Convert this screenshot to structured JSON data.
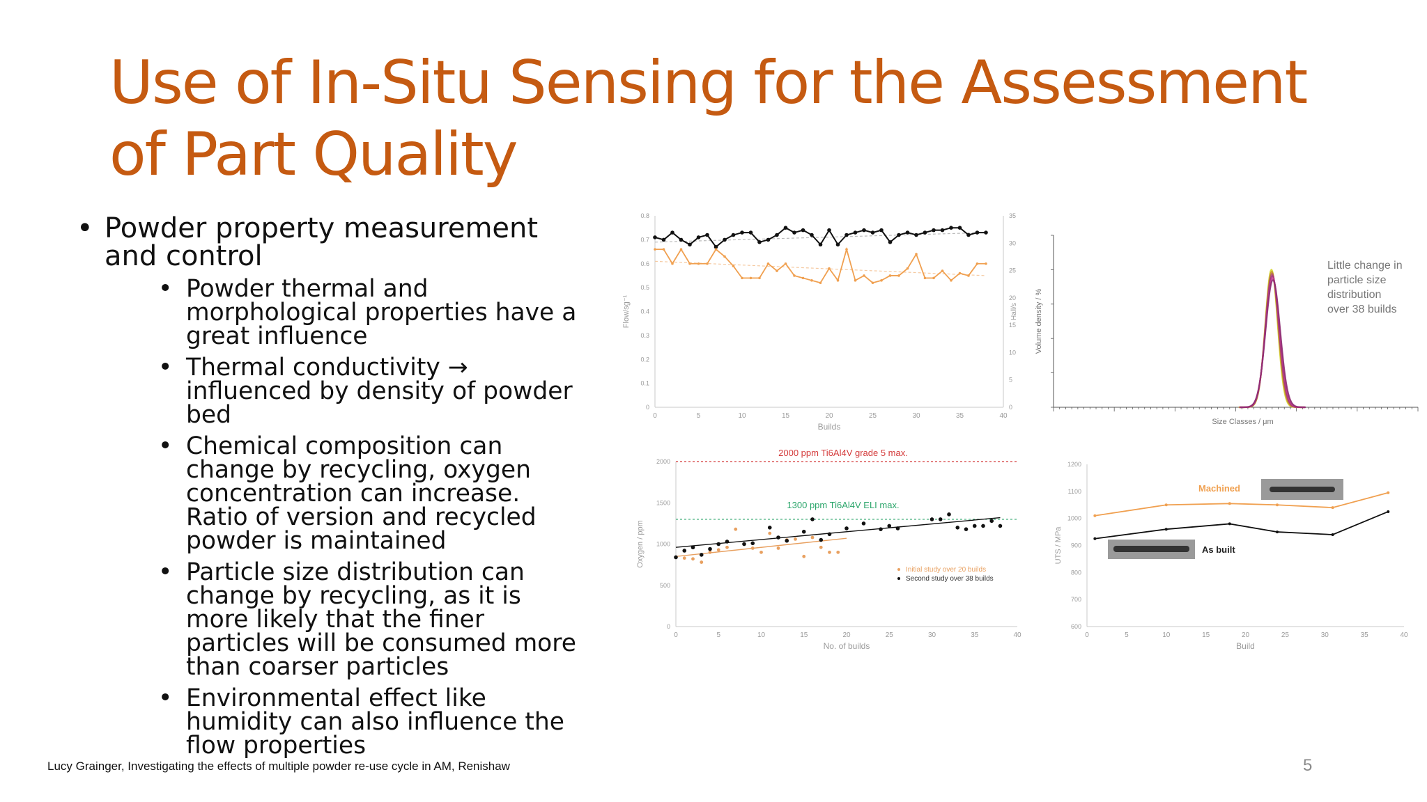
{
  "slide": {
    "title": "Use of In-Situ Sensing for the Assessment of Part Quality",
    "bullet": "Powder property measurement and control",
    "sub_bullets": [
      "Powder thermal and morphological properties have a great influence",
      "Thermal conductivity → influenced by density of powder bed",
      "Chemical composition can change by recycling, oxygen concentration can increase. Ratio of version and recycled powder is maintained",
      "Particle size distribution can change by recycling, as it is more likely that the finer particles will be consumed more than coarser particles",
      "Environmental effect like humidity can also influence the flow properties"
    ],
    "footer": "Lucy Grainger, Investigating the effects of multiple powder re-use cycle in AM, Renishaw",
    "page_number": "5"
  },
  "chart_data": [
    {
      "type": "line",
      "xlabel": "Builds",
      "ylabel": "Flow/sg⁻¹",
      "y2label": "Hall/s",
      "xlim": [
        0,
        40
      ],
      "ylim": [
        0,
        0.8
      ],
      "y2lim": [
        0,
        35
      ],
      "x_ticks": [
        0,
        5,
        10,
        15,
        20,
        25,
        30,
        35,
        40
      ],
      "y_ticks": [
        0,
        0.1,
        0.2,
        0.3,
        0.4,
        0.5,
        0.6,
        0.7,
        0.8
      ],
      "y2_ticks": [
        0,
        5,
        10,
        15,
        20,
        25,
        30,
        35
      ],
      "series": [
        {
          "color": "#111111",
          "x": [
            0,
            1,
            2,
            3,
            4,
            5,
            6,
            7,
            8,
            9,
            10,
            11,
            12,
            13,
            14,
            15,
            16,
            17,
            18,
            19,
            20,
            21,
            22,
            23,
            24,
            25,
            26,
            27,
            28,
            29,
            30,
            31,
            32,
            33,
            34,
            35,
            36,
            37,
            38
          ],
          "y": [
            0.71,
            0.7,
            0.73,
            0.7,
            0.68,
            0.71,
            0.72,
            0.67,
            0.7,
            0.72,
            0.73,
            0.73,
            0.69,
            0.7,
            0.72,
            0.75,
            0.73,
            0.74,
            0.72,
            0.68,
            0.74,
            0.68,
            0.72,
            0.73,
            0.74,
            0.73,
            0.74,
            0.69,
            0.72,
            0.73,
            0.72,
            0.73,
            0.74,
            0.74,
            0.75,
            0.75,
            0.72,
            0.73,
            0.73
          ]
        },
        {
          "color": "#f0a050",
          "x": [
            0,
            1,
            2,
            3,
            4,
            5,
            6,
            7,
            8,
            9,
            10,
            11,
            12,
            13,
            14,
            15,
            16,
            17,
            18,
            19,
            20,
            21,
            22,
            23,
            24,
            25,
            26,
            27,
            28,
            29,
            30,
            31,
            32,
            33,
            34,
            35,
            36,
            37,
            38
          ],
          "y": [
            0.66,
            0.66,
            0.6,
            0.66,
            0.6,
            0.6,
            0.6,
            0.66,
            0.63,
            0.59,
            0.54,
            0.54,
            0.54,
            0.6,
            0.57,
            0.6,
            0.55,
            0.54,
            0.53,
            0.52,
            0.58,
            0.53,
            0.66,
            0.53,
            0.55,
            0.52,
            0.53,
            0.55,
            0.55,
            0.58,
            0.64,
            0.54,
            0.54,
            0.57,
            0.53,
            0.56,
            0.55,
            0.6,
            0.6
          ]
        }
      ],
      "trendlines": [
        {
          "color": "#bbbbbb",
          "x": [
            0,
            38
          ],
          "y": [
            0.69,
            0.73
          ]
        },
        {
          "color": "#f5c9a0",
          "x": [
            0,
            38
          ],
          "y": [
            0.61,
            0.55
          ]
        }
      ]
    },
    {
      "type": "line",
      "xlabel": "Size Classes / μm",
      "ylabel": "Volume density / %",
      "annotation": "Little change in particle size distribution over 38 builds",
      "peak_center": 0.6,
      "peak_height": 0.8,
      "curve_colors": [
        "#d4d420",
        "#c0902a",
        "#b05060",
        "#a03080",
        "#c84090",
        "#8a2a70"
      ]
    },
    {
      "type": "scatter",
      "xlabel": "No. of builds",
      "ylabel": "Oxygen / ppm",
      "xlim": [
        0,
        40
      ],
      "ylim": [
        0,
        2000
      ],
      "x_ticks": [
        0,
        5,
        10,
        15,
        20,
        25,
        30,
        35,
        40
      ],
      "y_ticks": [
        0,
        500,
        1000,
        1500,
        2000
      ],
      "reference_lines": [
        {
          "value": 2000,
          "label": "2000 ppm Ti6Al4V grade 5 max.",
          "color": "#d43a3a"
        },
        {
          "value": 1300,
          "label": "1300 ppm Ti6Al4V ELI max.",
          "color": "#2aa56a"
        }
      ],
      "series": [
        {
          "name": "Initial study over 20 builds",
          "color": "#e8a060",
          "x": [
            1,
            2,
            3,
            4,
            5,
            6,
            7,
            8,
            9,
            10,
            11,
            12,
            13,
            14,
            15,
            16,
            17,
            18,
            19
          ],
          "y": [
            830,
            820,
            780,
            900,
            930,
            960,
            1180,
            1000,
            950,
            900,
            1130,
            950,
            1050,
            1060,
            850,
            1080,
            960,
            900,
            900
          ]
        },
        {
          "name": "Second study over 38 builds",
          "color": "#111111",
          "x": [
            0,
            1,
            2,
            3,
            4,
            5,
            6,
            8,
            9,
            11,
            12,
            13,
            15,
            16,
            17,
            18,
            20,
            22,
            24,
            25,
            26,
            30,
            31,
            32,
            33,
            34,
            35,
            36,
            37,
            38
          ],
          "y": [
            840,
            920,
            960,
            870,
            940,
            1000,
            1030,
            1000,
            1010,
            1200,
            1080,
            1040,
            1150,
            1300,
            1050,
            1120,
            1190,
            1250,
            1180,
            1220,
            1190,
            1300,
            1300,
            1360,
            1200,
            1180,
            1220,
            1220,
            1280,
            1220
          ]
        }
      ],
      "trendlines": [
        {
          "color": "#111111",
          "x": [
            0,
            38
          ],
          "y": [
            960,
            1320
          ]
        },
        {
          "color": "#e8a060",
          "x": [
            0,
            20
          ],
          "y": [
            850,
            1070
          ]
        }
      ]
    },
    {
      "type": "line",
      "xlabel": "Build",
      "ylabel": "UTS / MPa",
      "xlim": [
        0,
        40
      ],
      "ylim": [
        600,
        1200
      ],
      "x_ticks": [
        0,
        5,
        10,
        15,
        20,
        25,
        30,
        35,
        40
      ],
      "y_ticks": [
        600,
        700,
        800,
        900,
        1000,
        1100,
        1200
      ],
      "series": [
        {
          "name": "Machined",
          "color": "#f0a050",
          "x": [
            1,
            10,
            18,
            24,
            31,
            38
          ],
          "y": [
            1010,
            1050,
            1055,
            1050,
            1040,
            1095
          ]
        },
        {
          "name": "As built",
          "color": "#111111",
          "x": [
            1,
            10,
            18,
            24,
            31,
            38
          ],
          "y": [
            925,
            960,
            980,
            950,
            940,
            1025
          ]
        }
      ]
    }
  ]
}
